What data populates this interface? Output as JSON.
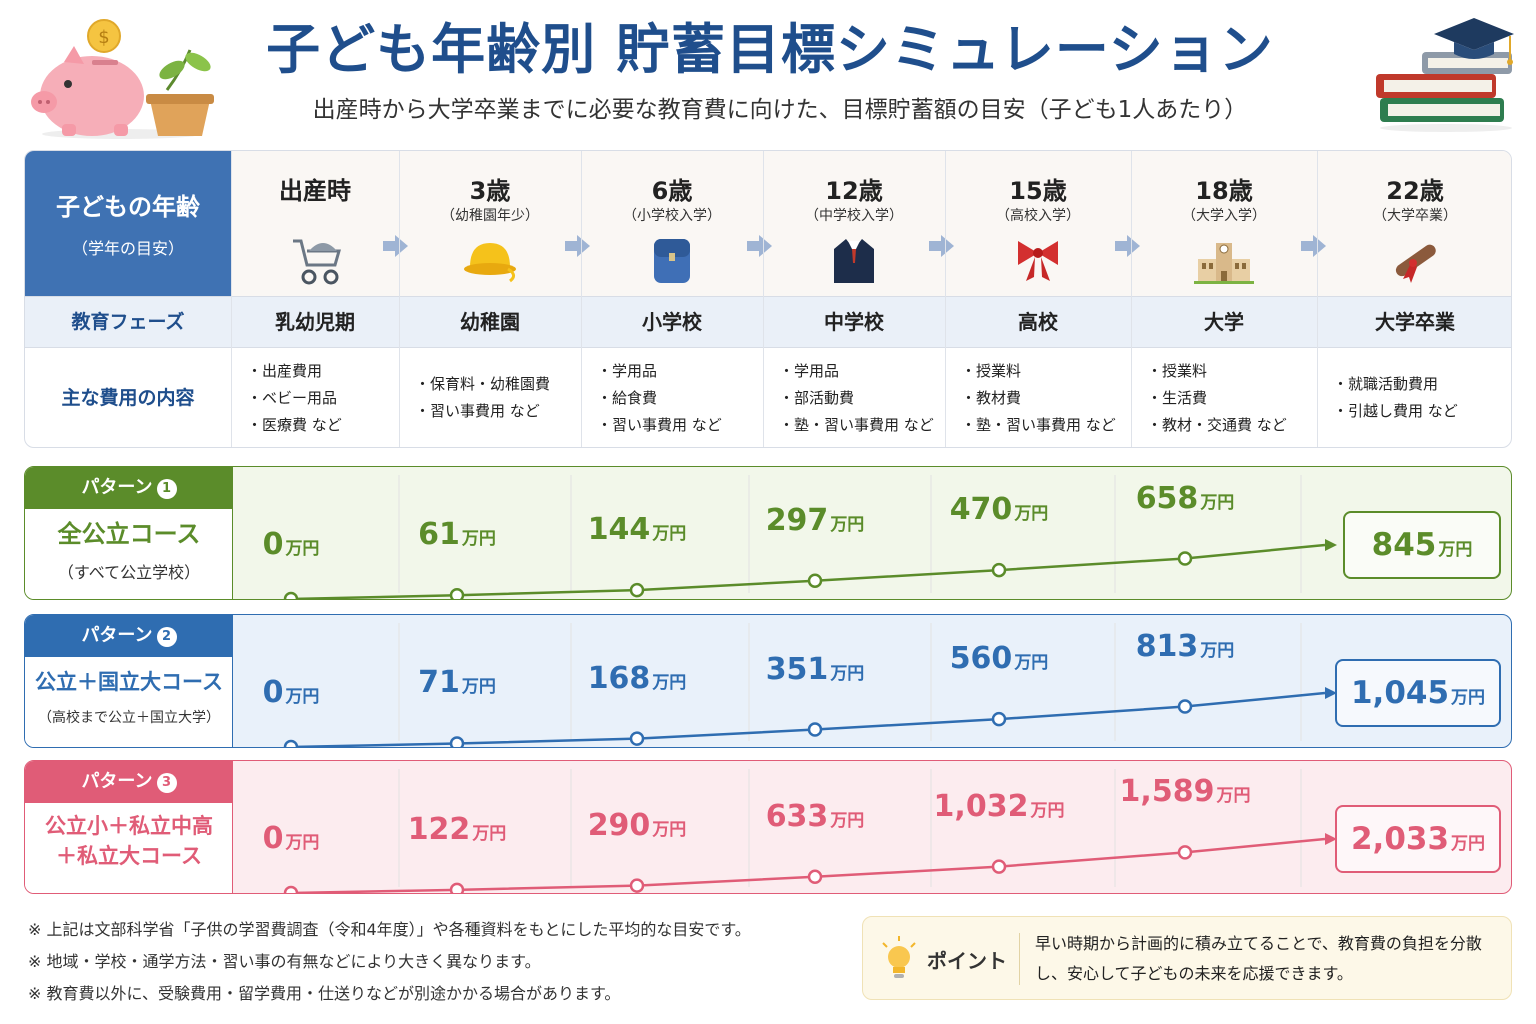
{
  "header": {
    "title": "子ども年齢別 貯蓄目標シミュレーション",
    "subtitle": "出産時から大学卒業までに必要な教育費に向けた、目標貯蓄額の目安（子ども1人あたり）"
  },
  "table": {
    "age_header": "子どもの年齢",
    "age_header_sub": "（学年の目安）",
    "phase_header": "教育フェーズ",
    "cost_header": "主な費用の内容",
    "stages": [
      {
        "age": "出産時",
        "note": "",
        "icon": "stroller-icon",
        "phase": "乳幼児期",
        "costs": [
          "・出産費用",
          "・ベビー用品",
          "・医療費 など"
        ]
      },
      {
        "age": "3歳",
        "note": "（幼稚園年少）",
        "icon": "kindergarten-hat-icon",
        "phase": "幼稚園",
        "costs": [
          "・保育料・幼稚園費",
          "・習い事費用 など"
        ]
      },
      {
        "age": "6歳",
        "note": "（小学校入学）",
        "icon": "school-backpack-icon",
        "phase": "小学校",
        "costs": [
          "・学用品",
          "・給食費",
          "・習い事費用 など"
        ]
      },
      {
        "age": "12歳",
        "note": "（中学校入学）",
        "icon": "school-uniform-icon",
        "phase": "中学校",
        "costs": [
          "・学用品",
          "・部活動費",
          "・塾・習い事費用 など"
        ]
      },
      {
        "age": "15歳",
        "note": "（高校入学）",
        "icon": "ribbon-icon",
        "phase": "高校",
        "costs": [
          "・授業料",
          "・教材費",
          "・塾・習い事費用 など"
        ]
      },
      {
        "age": "18歳",
        "note": "（大学入学）",
        "icon": "university-building-icon",
        "phase": "大学",
        "costs": [
          "・授業料",
          "・生活費",
          "・教材・交通費 など"
        ]
      },
      {
        "age": "22歳",
        "note": "（大学卒業）",
        "icon": "diploma-icon",
        "phase": "大学卒業",
        "costs": [
          "・就職活動費用",
          "・引越し費用 など"
        ]
      }
    ]
  },
  "chart_data": {
    "type": "line",
    "categories": [
      "出産時",
      "3歳",
      "6歳",
      "12歳",
      "15歳",
      "18歳",
      "22歳"
    ],
    "unit": "万円",
    "series": [
      {
        "tag": "パターン",
        "tag_num": "1",
        "name": "全公立コース",
        "desc": "（すべて公立学校）",
        "color": "#5b8c2a",
        "fill": "#f2f7ea",
        "labels": [
          "0",
          "61",
          "144",
          "297",
          "470",
          "658",
          "845"
        ],
        "values": [
          0,
          61,
          144,
          297,
          470,
          658,
          845
        ]
      },
      {
        "tag": "パターン",
        "tag_num": "2",
        "name": "公立＋国立大コース",
        "desc": "（高校まで公立＋国立大学）",
        "color": "#2f6db1",
        "fill": "#e9f1fa",
        "labels": [
          "0",
          "71",
          "168",
          "351",
          "560",
          "813",
          "1,045"
        ],
        "values": [
          0,
          71,
          168,
          351,
          560,
          813,
          1045
        ]
      },
      {
        "tag": "パターン",
        "tag_num": "3",
        "name": "公立小＋私立中高\n＋私立大コース",
        "desc": "",
        "color": "#e05c77",
        "fill": "#fcecef",
        "labels": [
          "0",
          "122",
          "290",
          "633",
          "1,032",
          "1,589",
          "2,033"
        ],
        "values": [
          0,
          122,
          290,
          633,
          1032,
          1589,
          2033
        ]
      }
    ]
  },
  "footer": {
    "notes": [
      "※ 上記は文部科学省「子供の学習費調査（令和4年度）」や各種資料をもとにした平均的な目安です。",
      "※ 地域・学校・通学方法・習い事の有無などにより大きく異なります。",
      "※ 教育費以外に、受験費用・留学費用・仕送りなどが別途かかる場合があります。"
    ],
    "point_label": "ポイント",
    "point_text": "早い時期から計画的に積み立てることで、教育費の負担を分散し、安心して子どもの未来を応援できます。"
  },
  "colors": {
    "primary": "#1f4e8c",
    "header_blue": "#3f72b3"
  }
}
